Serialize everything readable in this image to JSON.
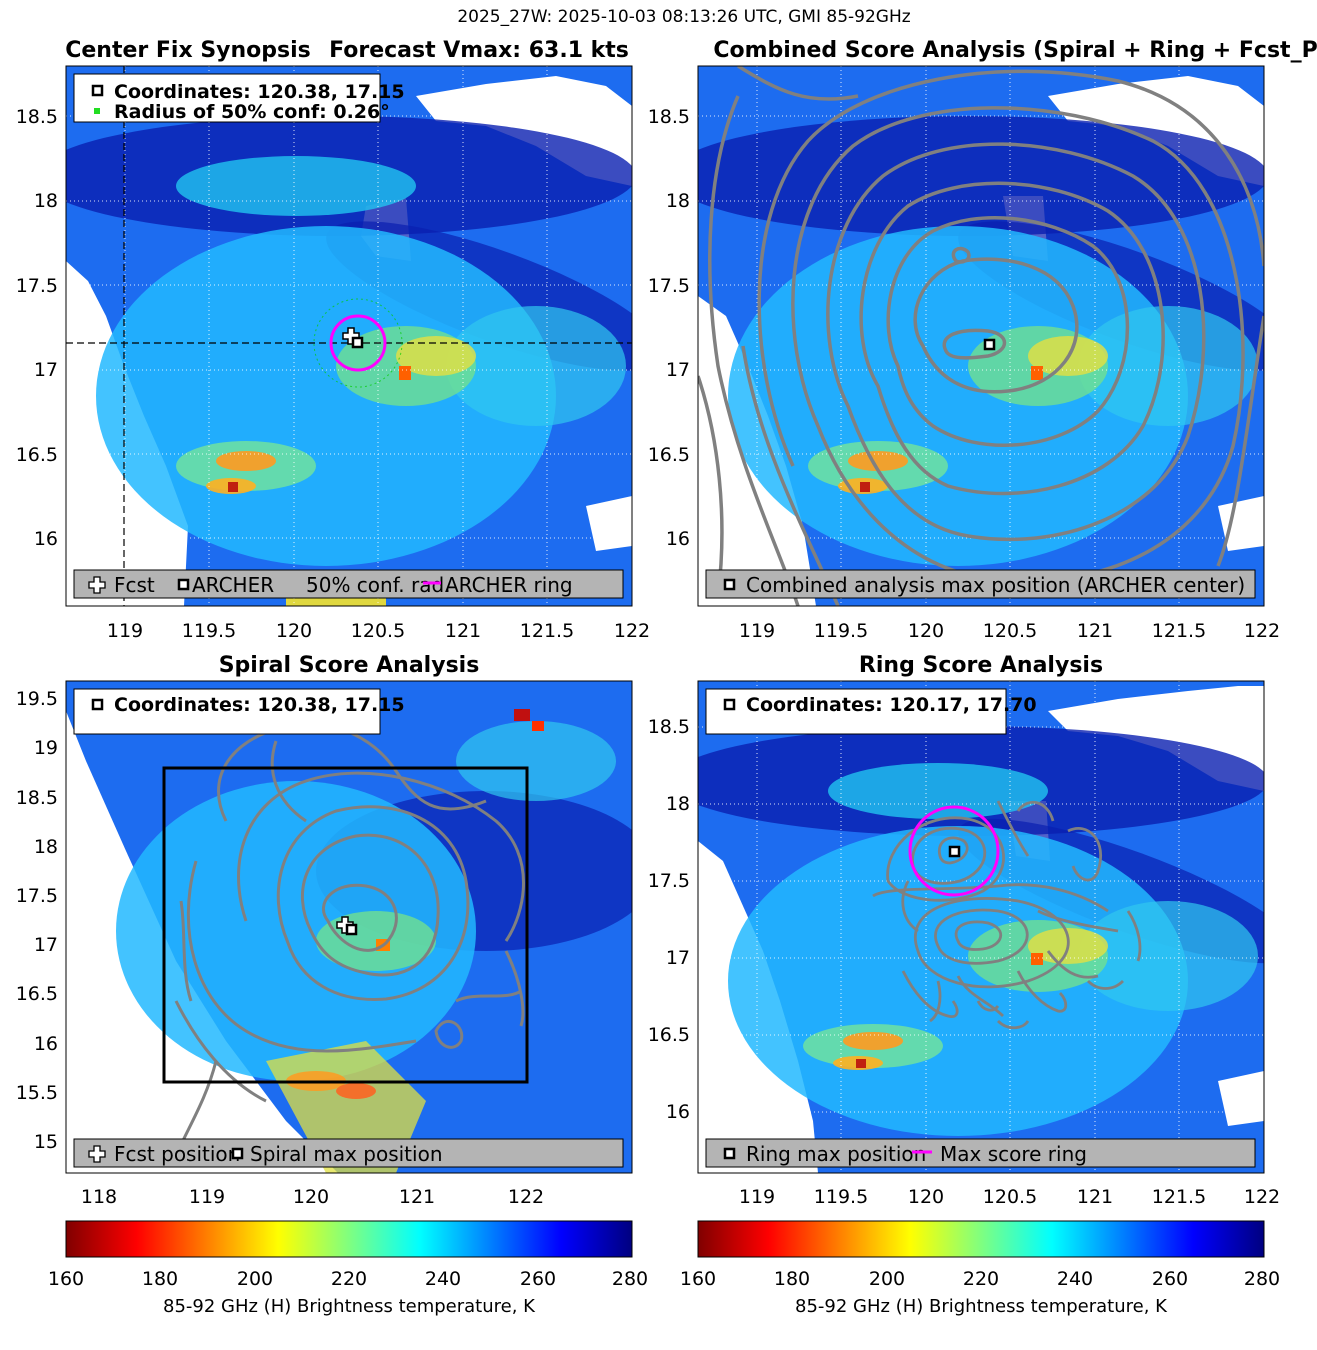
{
  "suptitle": "2025_27W: 2025-10-03 08:13:26 UTC, GMI 85-92GHz",
  "colors": {
    "fcst_marker": "#ffffff",
    "archer_marker": "#000000",
    "conf_circle": "#00cc00",
    "score_ring": "#ff00ff",
    "contour": "#808080",
    "legend_box": "#b4b4b4",
    "missing": "#ffffff"
  },
  "colormap": "jet",
  "chart_data": [
    {
      "type": "heatmap",
      "panel": "center-fix",
      "title_left": "Center Fix Synopsis",
      "title_right": "Forecast Vmax: 63.1 kts",
      "xlim": [
        118.65,
        122.0
      ],
      "ylim": [
        15.6,
        18.8
      ],
      "xticks": [
        "119",
        "119.5",
        "120",
        "120.5",
        "121",
        "121.5",
        "122"
      ],
      "yticks": [
        "16",
        "16.5",
        "17",
        "17.5",
        "18",
        "18.5"
      ],
      "grid": true,
      "info_box": [
        {
          "icon": "archer-square",
          "text": "Coordinates: 120.38, 17.15"
        },
        {
          "icon": "green-dot",
          "text": "Radius of 50% conf: 0.26°"
        }
      ],
      "legend": [
        {
          "icon": "fcst-cross",
          "text": "Fcst"
        },
        {
          "icon": "archer-square",
          "text": "ARCHER"
        },
        {
          "icon": "none",
          "text": "50% conf. rad."
        },
        {
          "icon": "magenta-line",
          "text": "ARCHER ring"
        }
      ],
      "fcst_position": [
        120.34,
        17.19
      ],
      "archer_position": [
        120.38,
        17.15
      ],
      "ring": {
        "center": [
          120.38,
          17.15
        ],
        "radius_deg": 0.16
      },
      "conf_radius_deg": 0.26,
      "crosshair": {
        "x": 118.6,
        "y": 17.15
      }
    },
    {
      "type": "heatmap",
      "panel": "combined",
      "title": "Combined Score Analysis (Spiral + Ring + Fcst_Pe",
      "xlim": [
        118.65,
        122.0
      ],
      "ylim": [
        15.6,
        18.8
      ],
      "xticks": [
        "119",
        "119.5",
        "120",
        "120.5",
        "121",
        "121.5",
        "122"
      ],
      "yticks": [
        "16",
        "16.5",
        "17",
        "17.5",
        "18",
        "18.5"
      ],
      "grid": true,
      "legend": [
        {
          "icon": "archer-square",
          "text": "Combined analysis max position (ARCHER center)"
        }
      ],
      "max_position": [
        120.38,
        17.15
      ],
      "contours": "concentric"
    },
    {
      "type": "heatmap",
      "panel": "spiral",
      "title": "Spiral Score Analysis",
      "xlim": [
        117.75,
        122.95
      ],
      "ylim": [
        14.7,
        19.7
      ],
      "xticks": [
        "118",
        "119",
        "120",
        "121",
        "122"
      ],
      "yticks": [
        "15",
        "15.5",
        "16",
        "16.5",
        "17",
        "17.5",
        "18",
        "18.5",
        "19",
        "19.5"
      ],
      "grid": false,
      "info_box": [
        {
          "icon": "archer-square",
          "text": "Coordinates: 120.38, 17.15"
        }
      ],
      "legend": [
        {
          "icon": "fcst-cross",
          "text": "Fcst position"
        },
        {
          "icon": "archer-square",
          "text": "Spiral max position"
        }
      ],
      "fcst_position": [
        120.32,
        17.2
      ],
      "max_position": [
        120.38,
        17.15
      ],
      "box": {
        "x": [
          118.65,
          122.0
        ],
        "y": [
          15.6,
          18.8
        ]
      }
    },
    {
      "type": "heatmap",
      "panel": "ring",
      "title": "Ring Score Analysis",
      "xlim": [
        118.65,
        122.0
      ],
      "ylim": [
        15.6,
        18.8
      ],
      "xticks": [
        "119",
        "119.5",
        "120",
        "120.5",
        "121",
        "121.5",
        "122"
      ],
      "yticks": [
        "16",
        "16.5",
        "17",
        "17.5",
        "18",
        "18.5"
      ],
      "grid": true,
      "info_box": [
        {
          "icon": "archer-square",
          "text": "Coordinates: 120.17, 17.70"
        }
      ],
      "legend": [
        {
          "icon": "archer-square",
          "text": "Ring max position"
        },
        {
          "icon": "magenta-line",
          "text": "Max score ring"
        }
      ],
      "max_position": [
        120.17,
        17.7
      ],
      "ring": {
        "center": [
          120.17,
          17.7
        ],
        "radius_deg": 0.26
      }
    }
  ],
  "colorbar": {
    "range": [
      160,
      280
    ],
    "ticks": [
      "160",
      "180",
      "200",
      "220",
      "240",
      "260",
      "280"
    ],
    "label": "85-92 GHz (H) Brightness temperature, K"
  }
}
